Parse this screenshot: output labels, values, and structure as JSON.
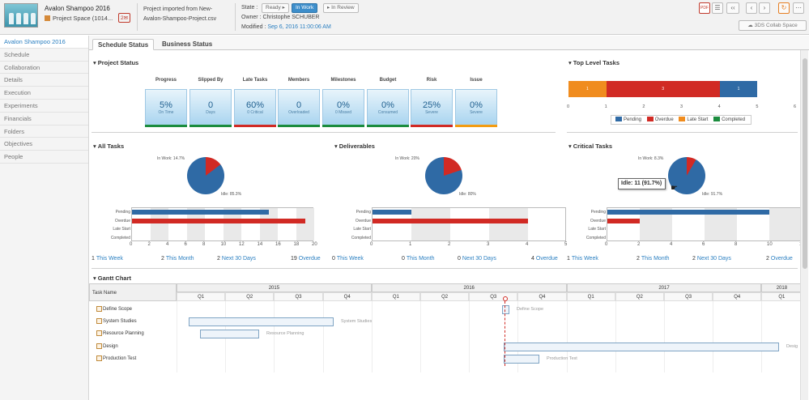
{
  "header": {
    "project_title": "Avalon Shampoo 2016",
    "project_space": "Project Space (1014...",
    "badge": "2",
    "import_line1": "Project imported from New-",
    "import_line2": "Avalon-Shampoo-Project.csv",
    "state_label": "State :",
    "states": [
      "Ready",
      "In Work",
      "In Review"
    ],
    "owner": "Owner : Christophe SCHUBER",
    "modified_label": "Modified :",
    "modified_value": "Sep 6, 2016 11:00:06 AM",
    "collab_button": "3DS Collab Space"
  },
  "sidebar": {
    "items": [
      "Avalon Shampoo 2016",
      "Schedule",
      "Collaboration",
      "Details",
      "Execution",
      "Experiments",
      "Financials",
      "Folders",
      "Objectives",
      "People"
    ]
  },
  "tabs": [
    "Schedule Status",
    "Business Status"
  ],
  "project_status": {
    "title": "Project Status",
    "kpis": [
      {
        "label": "Progress",
        "value": "5%",
        "sub": "On Time",
        "color": "#1b8c3e"
      },
      {
        "label": "Slipped By",
        "value": "0",
        "sub": "Days",
        "color": "#1b8c3e"
      },
      {
        "label": "Late Tasks",
        "value": "60%",
        "sub": "0 Critical",
        "color": "#d12a24"
      },
      {
        "label": "Members",
        "value": "0",
        "sub": "Overloaded",
        "color": "#1b8c3e"
      },
      {
        "label": "Milestones",
        "value": "0%",
        "sub": "0 Missed",
        "color": "#1b8c3e"
      },
      {
        "label": "Budget",
        "value": "0%",
        "sub": "Consumed",
        "color": "#1b8c3e"
      },
      {
        "label": "Risk",
        "value": "25%",
        "sub": "Severe",
        "color": "#d12a24"
      },
      {
        "label": "Issue",
        "value": "0%",
        "sub": "Severe",
        "color": "#f39c12"
      }
    ]
  },
  "top_level": {
    "title": "Top Level Tasks",
    "segments": [
      {
        "label": "1",
        "value": 1,
        "color": "#f08c1e"
      },
      {
        "label": "3",
        "value": 3,
        "color": "#d12a24"
      },
      {
        "label": "1",
        "value": 1,
        "color": "#2f6aa5"
      }
    ],
    "ticks": [
      "0",
      "1",
      "2",
      "3",
      "4",
      "5",
      "6"
    ],
    "legend": [
      {
        "label": "Pending",
        "color": "#2f6aa5"
      },
      {
        "label": "Overdue",
        "color": "#d12a24"
      },
      {
        "label": "Late Start",
        "color": "#f08c1e"
      },
      {
        "label": "Completed",
        "color": "#1b8c3e"
      }
    ]
  },
  "panels": [
    {
      "title": "All Tasks",
      "pie_inwork": "In Work: 14.7%",
      "pie_idle": "Idle: 85.3%",
      "rows": [
        "Pending",
        "Overdue",
        "Late Start",
        "Completed"
      ],
      "ticks": [
        "0",
        "2",
        "4",
        "6",
        "8",
        "10",
        "12",
        "14",
        "16",
        "18",
        "20"
      ],
      "footer": [
        {
          "count": "1",
          "label": "This Week"
        },
        {
          "count": "2",
          "label": "This Month"
        },
        {
          "count": "2",
          "label": "Next 30 Days"
        },
        {
          "count": "19",
          "label": "Overdue"
        }
      ]
    },
    {
      "title": "Deliverables",
      "pie_inwork": "In Work: 20%",
      "pie_idle": "Idle: 80%",
      "rows": [
        "Pending",
        "Overdue",
        "Late Start",
        "Completed"
      ],
      "ticks": [
        "0",
        "1",
        "2",
        "3",
        "4",
        "5"
      ],
      "footer": [
        {
          "count": "0",
          "label": "This Week"
        },
        {
          "count": "0",
          "label": "This Month"
        },
        {
          "count": "0",
          "label": "Next 30 Days"
        },
        {
          "count": "4",
          "label": "Overdue"
        }
      ]
    },
    {
      "title": "Critical Tasks",
      "pie_inwork": "In Work: 8.3%",
      "pie_idle": "Idle: 91.7%",
      "rows": [
        "Pending",
        "Overdue",
        "Late Start",
        "Completed"
      ],
      "ticks": [
        "0",
        "2",
        "4",
        "6",
        "8",
        "10",
        "12"
      ],
      "footer": [
        {
          "count": "1",
          "label": "This Week"
        },
        {
          "count": "2",
          "label": "This Month"
        },
        {
          "count": "2",
          "label": "Next 30 Days"
        },
        {
          "count": "2",
          "label": "Overdue"
        }
      ]
    }
  ],
  "tooltip": "Idle: 11 (91.7%)",
  "chart_data": [
    {
      "type": "bar",
      "title": "Top Level Tasks",
      "categories": [
        "Late Start",
        "Overdue",
        "Pending"
      ],
      "values": [
        1,
        3,
        1
      ],
      "xlim": [
        0,
        6
      ]
    },
    {
      "type": "pie",
      "title": "All Tasks",
      "categories": [
        "In Work",
        "Idle"
      ],
      "values": [
        14.7,
        85.3
      ]
    },
    {
      "type": "bar",
      "title": "All Tasks",
      "categories": [
        "Pending",
        "Overdue",
        "Late Start",
        "Completed"
      ],
      "values": [
        15,
        19,
        0,
        0
      ],
      "xlim": [
        0,
        20
      ]
    },
    {
      "type": "pie",
      "title": "Deliverables",
      "categories": [
        "In Work",
        "Idle"
      ],
      "values": [
        20,
        80
      ]
    },
    {
      "type": "bar",
      "title": "Deliverables",
      "categories": [
        "Pending",
        "Overdue",
        "Late Start",
        "Completed"
      ],
      "values": [
        1,
        4,
        0,
        0
      ],
      "xlim": [
        0,
        5
      ]
    },
    {
      "type": "pie",
      "title": "Critical Tasks",
      "categories": [
        "In Work",
        "Idle"
      ],
      "values": [
        8.3,
        91.7
      ]
    },
    {
      "type": "bar",
      "title": "Critical Tasks",
      "categories": [
        "Pending",
        "Overdue",
        "Late Start",
        "Completed"
      ],
      "values": [
        10,
        2,
        0,
        0
      ],
      "xlim": [
        0,
        12
      ]
    }
  ],
  "gantt": {
    "title": "Gantt Chart",
    "name_header": "Task Name",
    "years": [
      "2015",
      "2016",
      "2017",
      "2018"
    ],
    "quarters": [
      "Q1",
      "Q2",
      "Q3",
      "Q4",
      "Q1",
      "Q2",
      "Q3",
      "Q4",
      "Q1",
      "Q2",
      "Q3",
      "Q4",
      "Q1"
    ],
    "tasks": [
      "Define Scope",
      "System Studies",
      "Resource Planning",
      "Design",
      "Production Test"
    ],
    "bar_labels": [
      "Define Scope",
      "System Studies",
      "Resource Planning",
      "Desig",
      "Production Test"
    ]
  }
}
